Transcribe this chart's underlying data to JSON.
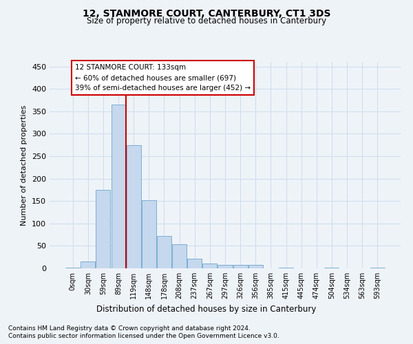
{
  "title": "12, STANMORE COURT, CANTERBURY, CT1 3DS",
  "subtitle": "Size of property relative to detached houses in Canterbury",
  "xlabel": "Distribution of detached houses by size in Canterbury",
  "ylabel": "Number of detached properties",
  "footnote1": "Contains HM Land Registry data © Crown copyright and database right 2024.",
  "footnote2": "Contains public sector information licensed under the Open Government Licence v3.0.",
  "annotation_line1": "12 STANMORE COURT: 133sqm",
  "annotation_line2": "← 60% of detached houses are smaller (697)",
  "annotation_line3": "39% of semi-detached houses are larger (452) →",
  "bar_color": "#c5d8ed",
  "bar_edge_color": "#7bafd4",
  "grid_color": "#c8d8ea",
  "background_color": "#eef3f8",
  "annotation_box_color": "#ffffff",
  "annotation_box_edge_color": "#cc0000",
  "vline_color": "#cc0000",
  "categories": [
    "0sqm",
    "30sqm",
    "59sqm",
    "89sqm",
    "119sqm",
    "148sqm",
    "178sqm",
    "208sqm",
    "237sqm",
    "267sqm",
    "297sqm",
    "326sqm",
    "356sqm",
    "385sqm",
    "415sqm",
    "445sqm",
    "474sqm",
    "504sqm",
    "534sqm",
    "563sqm",
    "593sqm"
  ],
  "values": [
    2,
    16,
    175,
    365,
    275,
    152,
    72,
    53,
    22,
    10,
    7,
    7,
    7,
    0,
    2,
    0,
    0,
    1,
    0,
    0,
    2
  ],
  "vline_x_index": 4,
  "ylim": [
    0,
    460
  ],
  "yticks": [
    0,
    50,
    100,
    150,
    200,
    250,
    300,
    350,
    400,
    450
  ]
}
